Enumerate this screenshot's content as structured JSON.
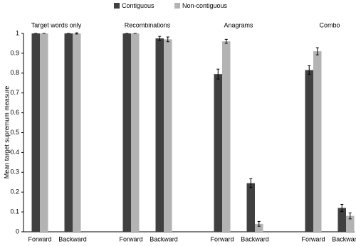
{
  "chart_data": {
    "type": "bar",
    "y_label": "Mean target supremum measure",
    "groups": [
      "Target words only",
      "Recombinations",
      "Anagrams",
      "Combo"
    ],
    "categories": [
      "Forward",
      "Backward",
      "Forward",
      "Backward",
      "Forward",
      "Backward",
      "Forward",
      "Backward"
    ],
    "series": [
      {
        "name": "Contiguous",
        "color": "#404040",
        "values": [
          1,
          1,
          1,
          0.975,
          0.795,
          0.245,
          0.815,
          0.12
        ],
        "errors": [
          0,
          0,
          0,
          0.01,
          0.025,
          0.022,
          0.022,
          0.018
        ]
      },
      {
        "name": "Non-contiguous",
        "color": "#b3b3b3",
        "values": [
          1,
          1,
          1,
          0.97,
          0.96,
          0.04,
          0.91,
          0.08
        ],
        "errors": [
          0,
          0.003,
          0,
          0.012,
          0.01,
          0.012,
          0.018,
          0.015
        ]
      }
    ],
    "ylim": [
      0,
      1
    ],
    "yticks": [
      0,
      0.1,
      0.2,
      0.3,
      0.4,
      0.5,
      0.6,
      0.7,
      0.8,
      0.9,
      1
    ],
    "grid": false
  }
}
